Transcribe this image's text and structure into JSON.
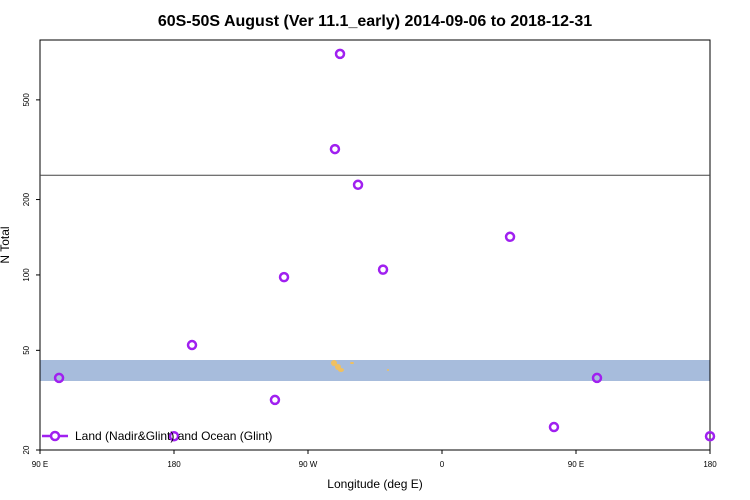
{
  "chart_data": {
    "type": "scatter",
    "title": "60S-50S August (Ver 11.1_early)   2014-09-06 to 2018-12-31",
    "x_label": "Longitude (deg E)",
    "y_label": "N Total",
    "log_y": true,
    "xlim": [
      90,
      540
    ],
    "xticks": [
      {
        "value": 90,
        "label": "90 E"
      },
      180,
      {
        "value": 270,
        "label": "90 W"
      },
      {
        "value": 360,
        "label": "0"
      },
      {
        "value": 450,
        "label": "90 E"
      },
      {
        "value": 540,
        "label": "180"
      }
    ],
    "ylim": [
      20,
      867
    ],
    "yticks": [
      20,
      50,
      100,
      200,
      500
    ],
    "reference_line": 250,
    "series": [
      {
        "name": "Land (Nadir&Glint) and Ocean (Glint)",
        "color": "#a020f0",
        "x": [
          102.8,
          180,
          192.1,
          247.8,
          253.9,
          288.1,
          291.5,
          303.6,
          320.4,
          405.7,
          435.2,
          464.1,
          540
        ],
        "values": [
          38.8,
          22.7,
          52.5,
          31.7,
          98,
          318,
          763,
          229,
          105,
          142,
          24.7,
          38.8,
          22.7
        ]
      }
    ]
  }
}
